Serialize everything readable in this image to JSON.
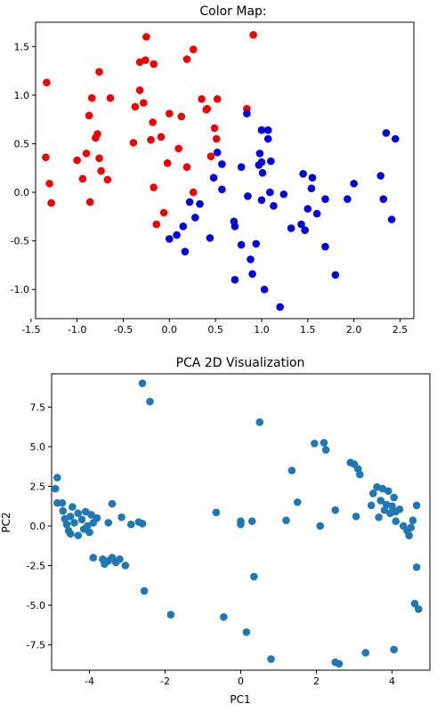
{
  "chart_data": [
    {
      "type": "scatter",
      "title": "Color Map:",
      "xlabel": "",
      "ylabel": "",
      "xlim": [
        -1.45,
        2.65
      ],
      "ylim": [
        -1.3,
        1.75
      ],
      "xticks": [
        "-1.5",
        "-1.0",
        "-0.5",
        "0.0",
        "0.5",
        "1.0",
        "1.5",
        "2.0",
        "2.5"
      ],
      "xtick_values": [
        -1.5,
        -1.0,
        -0.5,
        0.0,
        0.5,
        1.0,
        1.5,
        2.0,
        2.5
      ],
      "yticks": [
        "1.5",
        "1.0",
        "0.5",
        "0.0",
        "-0.5",
        "-1.0"
      ],
      "ytick_values": [
        1.5,
        1.0,
        0.5,
        0.0,
        -0.5,
        -1.0
      ],
      "grid": false,
      "series": [
        {
          "color": "#ee0000",
          "points": [
            [
              -1.33,
              1.13
            ],
            [
              -1.34,
              0.36
            ],
            [
              -1.3,
              0.09
            ],
            [
              -1.28,
              -0.11
            ],
            [
              -1.0,
              0.33
            ],
            [
              -0.94,
              0.14
            ],
            [
              -0.9,
              0.4
            ],
            [
              -0.87,
              0.79
            ],
            [
              -0.84,
              0.97
            ],
            [
              -0.86,
              -0.1
            ],
            [
              -0.8,
              0.56
            ],
            [
              -0.78,
              0.6
            ],
            [
              -0.76,
              0.35
            ],
            [
              -0.76,
              1.24
            ],
            [
              -0.74,
              0.22
            ],
            [
              -0.67,
              0.13
            ],
            [
              -0.64,
              0.97
            ],
            [
              -0.39,
              0.51
            ],
            [
              -0.37,
              0.88
            ],
            [
              -0.32,
              1.05
            ],
            [
              -0.32,
              1.34
            ],
            [
              -0.28,
              0.92
            ],
            [
              -0.26,
              1.36
            ],
            [
              -0.25,
              1.6
            ],
            [
              -0.2,
              0.54
            ],
            [
              -0.18,
              0.72
            ],
            [
              -0.17,
              1.32
            ],
            [
              -0.17,
              0.05
            ],
            [
              -0.14,
              -0.33
            ],
            [
              -0.09,
              0.57
            ],
            [
              -0.06,
              -0.21
            ],
            [
              -0.02,
              0.3
            ],
            [
              0.0,
              0.81
            ],
            [
              0.1,
              0.45
            ],
            [
              0.13,
              0.78
            ],
            [
              0.19,
              1.37
            ],
            [
              0.19,
              0.26
            ],
            [
              0.26,
              1.47
            ],
            [
              0.26,
              0.0
            ],
            [
              0.35,
              0.96
            ],
            [
              0.4,
              0.85
            ],
            [
              0.41,
              0.86
            ],
            [
              0.45,
              0.37
            ],
            [
              0.49,
              0.66
            ],
            [
              0.51,
              0.55
            ],
            [
              0.52,
              0.96
            ],
            [
              0.84,
              0.86
            ],
            [
              0.91,
              1.62
            ]
          ]
        },
        {
          "color": "#0000dd",
          "points": [
            [
              0.0,
              -0.48
            ],
            [
              0.08,
              -0.44
            ],
            [
              0.15,
              -0.35
            ],
            [
              0.17,
              -0.61
            ],
            [
              0.22,
              -0.1
            ],
            [
              0.28,
              -0.26
            ],
            [
              0.33,
              -0.12
            ],
            [
              0.44,
              -0.47
            ],
            [
              0.48,
              0.15
            ],
            [
              0.52,
              0.41
            ],
            [
              0.57,
              0.29
            ],
            [
              0.57,
              0.03
            ],
            [
              0.7,
              -0.3
            ],
            [
              0.71,
              -0.35
            ],
            [
              0.71,
              -0.9
            ],
            [
              0.78,
              0.26
            ],
            [
              0.78,
              -0.54
            ],
            [
              0.84,
              0.81
            ],
            [
              0.85,
              -0.04
            ],
            [
              0.88,
              -0.69
            ],
            [
              0.9,
              -0.84
            ],
            [
              0.94,
              -0.53
            ],
            [
              0.97,
              0.28
            ],
            [
              0.98,
              0.4
            ],
            [
              1.0,
              0.64
            ],
            [
              1.0,
              0.31
            ],
            [
              1.0,
              -0.08
            ],
            [
              1.01,
              0.2
            ],
            [
              1.03,
              -1.0
            ],
            [
              1.07,
              0.55
            ],
            [
              1.07,
              0.64
            ],
            [
              1.09,
              0.0
            ],
            [
              1.1,
              0.32
            ],
            [
              1.13,
              -0.14
            ],
            [
              1.2,
              -1.18
            ],
            [
              1.24,
              -0.02
            ],
            [
              1.32,
              -0.37
            ],
            [
              1.43,
              -0.33
            ],
            [
              1.45,
              0.19
            ],
            [
              1.47,
              -0.39
            ],
            [
              1.5,
              -0.17
            ],
            [
              1.54,
              0.04
            ],
            [
              1.55,
              0.15
            ],
            [
              1.6,
              -0.22
            ],
            [
              1.69,
              -0.56
            ],
            [
              1.69,
              -0.07
            ],
            [
              1.8,
              -0.85
            ],
            [
              1.93,
              -0.07
            ],
            [
              2.0,
              0.09
            ],
            [
              2.29,
              0.17
            ],
            [
              2.32,
              -0.07
            ],
            [
              2.35,
              0.61
            ],
            [
              2.41,
              -0.28
            ],
            [
              2.45,
              0.55
            ]
          ]
        }
      ]
    },
    {
      "type": "scatter",
      "title": "PCA 2D Visualization",
      "xlabel": "PC1",
      "ylabel": "PC2",
      "xlim": [
        -5.0,
        5.0
      ],
      "ylim": [
        -9.1,
        9.6
      ],
      "xticks": [
        "-4",
        "-2",
        "0",
        "2",
        "4"
      ],
      "xtick_values": [
        -4,
        -2,
        0,
        2,
        4
      ],
      "yticks": [
        "7.5",
        "5.0",
        "2.5",
        "0.0",
        "-2.5",
        "-5.0",
        "-7.5"
      ],
      "ytick_values": [
        7.5,
        5.0,
        2.5,
        0.0,
        -2.5,
        -5.0,
        -7.5
      ],
      "grid": false,
      "series": [
        {
          "color": "#1f77b4",
          "points": [
            [
              -4.85,
              3.05
            ],
            [
              -4.9,
              2.35
            ],
            [
              -4.85,
              1.45
            ],
            [
              -4.72,
              1.45
            ],
            [
              -4.7,
              0.95
            ],
            [
              -4.65,
              0.45
            ],
            [
              -4.6,
              0.1
            ],
            [
              -4.55,
              -0.3
            ],
            [
              -4.5,
              0.6
            ],
            [
              -4.5,
              -0.5
            ],
            [
              -4.45,
              1.2
            ],
            [
              -4.4,
              0.2
            ],
            [
              -4.3,
              0.8
            ],
            [
              -4.3,
              -0.6
            ],
            [
              -4.2,
              0.4
            ],
            [
              -4.15,
              -0.2
            ],
            [
              -4.1,
              0.9
            ],
            [
              -4.05,
              0.0
            ],
            [
              -4.0,
              -0.4
            ],
            [
              -3.95,
              0.7
            ],
            [
              -3.9,
              -2.0
            ],
            [
              -3.9,
              0.2
            ],
            [
              -3.8,
              0.5
            ],
            [
              -3.65,
              -2.1
            ],
            [
              -3.6,
              -2.4
            ],
            [
              -3.5,
              0.2
            ],
            [
              -3.5,
              -2.2
            ],
            [
              -3.4,
              1.4
            ],
            [
              -3.4,
              -2.0
            ],
            [
              -3.3,
              -2.3
            ],
            [
              -3.2,
              -2.1
            ],
            [
              -3.15,
              0.55
            ],
            [
              -3.05,
              -2.5
            ],
            [
              -2.9,
              0.1
            ],
            [
              -2.7,
              0.25
            ],
            [
              -2.6,
              0.15
            ],
            [
              -2.6,
              9.0
            ],
            [
              -2.55,
              -4.1
            ],
            [
              -2.4,
              7.85
            ],
            [
              -1.85,
              -5.6
            ],
            [
              -0.65,
              0.85
            ],
            [
              -0.45,
              -5.75
            ],
            [
              0.0,
              0.1
            ],
            [
              0.0,
              0.3
            ],
            [
              0.15,
              -6.7
            ],
            [
              0.3,
              0.3
            ],
            [
              0.35,
              -3.2
            ],
            [
              0.5,
              6.55
            ],
            [
              0.8,
              -8.4
            ],
            [
              1.2,
              0.35
            ],
            [
              1.35,
              3.5
            ],
            [
              1.5,
              1.5
            ],
            [
              1.95,
              5.2
            ],
            [
              2.1,
              0.0
            ],
            [
              2.2,
              5.25
            ],
            [
              2.25,
              4.8
            ],
            [
              2.5,
              1.0
            ],
            [
              2.5,
              -8.6
            ],
            [
              2.6,
              -8.7
            ],
            [
              2.9,
              4.0
            ],
            [
              3.0,
              3.9
            ],
            [
              3.05,
              0.6
            ],
            [
              3.1,
              3.6
            ],
            [
              3.15,
              3.25
            ],
            [
              3.3,
              -8.0
            ],
            [
              3.45,
              1.3
            ],
            [
              3.5,
              2.05
            ],
            [
              3.6,
              2.45
            ],
            [
              3.65,
              0.55
            ],
            [
              3.7,
              1.6
            ],
            [
              3.75,
              2.35
            ],
            [
              3.8,
              1.0
            ],
            [
              3.85,
              1.35
            ],
            [
              3.9,
              2.2
            ],
            [
              3.95,
              0.8
            ],
            [
              4.0,
              1.25
            ],
            [
              4.05,
              1.8
            ],
            [
              4.05,
              -7.8
            ],
            [
              4.1,
              0.9
            ],
            [
              4.1,
              0.3
            ],
            [
              4.2,
              1.05
            ],
            [
              4.3,
              0.0
            ],
            [
              4.4,
              -0.3
            ],
            [
              4.45,
              -0.6
            ],
            [
              4.5,
              -0.1
            ],
            [
              4.55,
              0.35
            ],
            [
              4.6,
              -4.9
            ],
            [
              4.65,
              -2.6
            ],
            [
              4.65,
              1.3
            ],
            [
              4.7,
              -5.25
            ]
          ]
        }
      ]
    }
  ]
}
